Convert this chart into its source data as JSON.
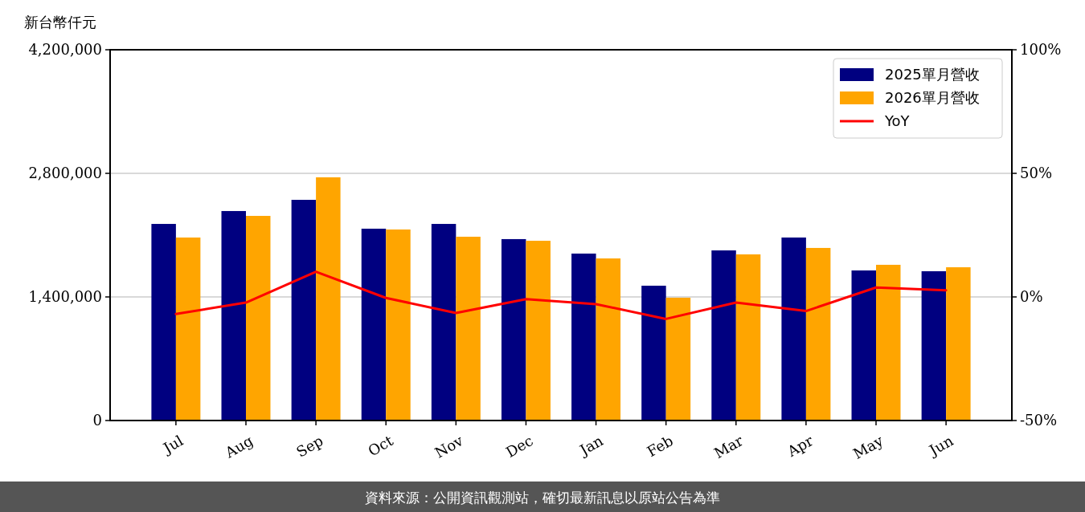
{
  "chart_data": {
    "type": "bar",
    "ylabel": "新台幣仟元",
    "categories": [
      "Jul",
      "Aug",
      "Sep",
      "Oct",
      "Nov",
      "Dec",
      "Jan",
      "Feb",
      "Mar",
      "Apr",
      "May",
      "Jun"
    ],
    "series": [
      {
        "name": "2025單月營收",
        "color": "#000080",
        "values": [
          2227000,
          2373000,
          2500000,
          2173000,
          2227000,
          2055000,
          1891000,
          1527000,
          1927000,
          2073000,
          1700000,
          1691000
        ]
      },
      {
        "name": "2026單月營收",
        "color": "#ffa500",
        "values": [
          2073000,
          2318000,
          2755000,
          2164000,
          2082000,
          2036000,
          1836000,
          1391000,
          1882000,
          1955000,
          1764000,
          1736000
        ]
      },
      {
        "name": "YoY",
        "type": "line",
        "axis": "y2",
        "color": "#ff0000",
        "values": [
          -6.9,
          -2.3,
          10.2,
          -0.4,
          -6.5,
          -0.9,
          -2.9,
          -8.9,
          -2.3,
          -5.7,
          3.8,
          2.7
        ]
      }
    ],
    "ylim": [
      0,
      4200000
    ],
    "yticks": [
      {
        "value": 0,
        "label": "0"
      },
      {
        "value": 1400000,
        "label": "1,400,000"
      },
      {
        "value": 2800000,
        "label": "2,800,000"
      },
      {
        "value": 4200000,
        "label": "4,200,000"
      }
    ],
    "y2lim": [
      -50,
      100
    ],
    "y2ticks": [
      {
        "value": -50,
        "label": "-50%"
      },
      {
        "value": 0,
        "label": "0%"
      },
      {
        "value": 50,
        "label": "50%"
      },
      {
        "value": 100,
        "label": "100%"
      }
    ],
    "grid": "y",
    "legend": "top right",
    "marker": "none",
    "line_style": "solid",
    "annotations": [
      "資料來源：公開資訊觀測站，確切最新訊息以原站公告為準"
    ]
  }
}
